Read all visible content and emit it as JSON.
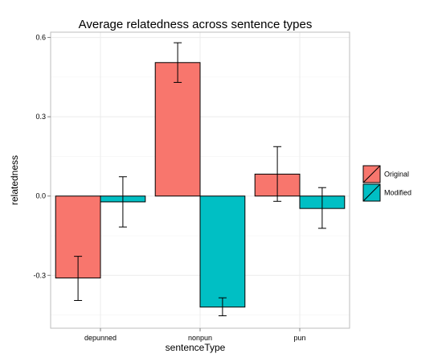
{
  "chart_data": {
    "type": "bar",
    "title": "Average relatedness across sentence types",
    "xlabel": "sentenceType",
    "ylabel": "relatedness",
    "categories": [
      "depunned",
      "nonpun",
      "pun"
    ],
    "series": [
      {
        "name": "Original",
        "color": "#F8766D",
        "values": [
          -0.31,
          0.505,
          0.083
        ],
        "err_low": [
          -0.395,
          0.43,
          -0.02
        ],
        "err_high": [
          -0.228,
          0.58,
          0.187
        ]
      },
      {
        "name": "Modified",
        "color": "#00BFC4",
        "values": [
          -0.022,
          -0.42,
          -0.047
        ],
        "err_low": [
          -0.117,
          -0.453,
          -0.122
        ],
        "err_high": [
          0.073,
          -0.385,
          0.032
        ]
      }
    ],
    "ylim": [
      -0.5,
      0.62
    ],
    "yticks": [
      -0.3,
      0.0,
      0.3,
      0.6
    ],
    "ytick_labels": [
      "-0.3",
      "0.0",
      "0.3",
      "0.6"
    ],
    "grid": true,
    "legend_position": "right"
  }
}
